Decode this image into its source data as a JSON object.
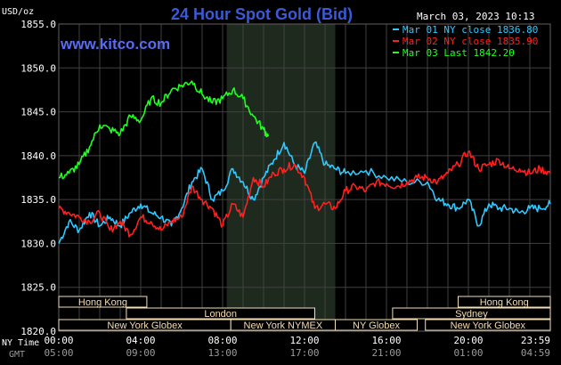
{
  "chart_data": {
    "type": "line",
    "title": "24 Hour Spot Gold (Bid)",
    "watermark": "www.kitco.com",
    "timestamp": "March 03, 2023 10:13",
    "ylabel": "USD/oz",
    "ylim": [
      1820,
      1855
    ],
    "y_ticks": [
      "1855.0",
      "1850.0",
      "1845.0",
      "1840.0",
      "1835.0",
      "1830.0",
      "1825.0",
      "1820.0"
    ],
    "x_range_hours": [
      0,
      24
    ],
    "x_ticks_ny": [
      "00:00",
      "04:00",
      "08:00",
      "12:00",
      "16:00",
      "20:00",
      "23:59"
    ],
    "x_ticks_gmt": [
      "05:00",
      "09:00",
      "13:00",
      "17:00",
      "21:00",
      "01:00",
      "04:59"
    ],
    "x_row_labels": {
      "ny": "NY Time",
      "gmt": "GMT"
    },
    "grid": true,
    "legend_position": "top-right",
    "colors": {
      "background": "#000000",
      "title": "#3b5bd6",
      "watermark": "#5a6cf0",
      "grid": "#404040",
      "axis_text": "#ffffff",
      "market_box": "#f5deb3",
      "market_shade": "#1e2a1e"
    },
    "legend": [
      {
        "label": "Mar 01 NY close 1836.80",
        "color": "#2fc8ff"
      },
      {
        "label": "Mar 02 NY close 1835.90",
        "color": "#ff2020"
      },
      {
        "label": "Mar 03 Last 1842.20",
        "color": "#20ff20"
      }
    ],
    "markets": [
      {
        "label": "Hong Kong",
        "row": 0,
        "hours": [
          0,
          4.3
        ]
      },
      {
        "label": "Hong Kong",
        "row": 0,
        "hours": [
          19.5,
          24
        ]
      },
      {
        "label": "London",
        "row": 1,
        "hours": [
          3.3,
          12.5
        ]
      },
      {
        "label": "Sydney",
        "row": 1,
        "hours": [
          16.3,
          24
        ]
      },
      {
        "label": "New York Globex",
        "row": 2,
        "hours": [
          0,
          8.4
        ]
      },
      {
        "label": "New York NYMEX",
        "row": 2,
        "hours": [
          8.4,
          13.5
        ]
      },
      {
        "label": "NY Globex",
        "row": 2,
        "hours": [
          13.5,
          17.5
        ]
      },
      {
        "label": "New York Globex",
        "row": 2,
        "hours": [
          17.9,
          24
        ]
      }
    ],
    "nymex_shade_hours": [
      8.2,
      13.5
    ],
    "series": [
      {
        "name": "Mar 01 NY close 1836.80",
        "color": "#2fc8ff",
        "x": [
          0,
          0.5,
          1,
          1.5,
          2,
          2.5,
          3,
          3.5,
          4,
          4.5,
          5,
          5.5,
          6,
          6.5,
          7,
          7.5,
          8,
          8.5,
          9,
          9.5,
          10,
          10.5,
          11,
          11.5,
          12,
          12.5,
          13,
          13.5,
          14,
          15,
          16,
          17,
          18,
          18.5,
          19,
          19.5,
          20,
          20.5,
          21,
          21.5,
          22,
          22.5,
          23,
          23.5,
          24
        ],
        "y": [
          1830.0,
          1832.5,
          1831.5,
          1833.5,
          1832.0,
          1833.0,
          1832.0,
          1833.5,
          1834.5,
          1833.5,
          1833.0,
          1832.0,
          1834.0,
          1837.0,
          1838.5,
          1835.0,
          1836.0,
          1838.5,
          1837.0,
          1835.0,
          1837.5,
          1839.5,
          1841.5,
          1839.0,
          1838.0,
          1841.5,
          1839.0,
          1838.5,
          1838.0,
          1838.3,
          1837.5,
          1837.0,
          1837.0,
          1835.0,
          1834.5,
          1834.0,
          1835.0,
          1832.0,
          1834.5,
          1834.0,
          1834.0,
          1833.5,
          1834.0,
          1834.0,
          1834.5
        ]
      },
      {
        "name": "Mar 02 NY close 1835.90",
        "color": "#ff2020",
        "x": [
          0,
          0.5,
          1,
          1.5,
          2,
          2.5,
          3,
          3.5,
          4,
          4.5,
          5,
          5.5,
          6,
          6.5,
          7,
          7.5,
          8,
          8.5,
          9,
          9.5,
          10,
          10.5,
          11,
          11.5,
          12,
          12.5,
          13,
          13.5,
          14,
          14.5,
          15,
          15.5,
          16,
          16.5,
          17,
          17.5,
          18,
          18.5,
          19,
          19.5,
          20,
          20.5,
          21,
          21.5,
          22,
          22.5,
          23,
          23.5,
          24
        ],
        "y": [
          1834.0,
          1833.5,
          1833.0,
          1832.5,
          1833.5,
          1831.5,
          1832.5,
          1831.0,
          1833.0,
          1832.5,
          1831.5,
          1832.5,
          1833.0,
          1836.5,
          1835.0,
          1834.0,
          1832.0,
          1834.5,
          1833.0,
          1837.5,
          1836.5,
          1838.0,
          1838.5,
          1839.0,
          1837.5,
          1834.0,
          1834.5,
          1834.0,
          1836.0,
          1836.5,
          1836.0,
          1837.0,
          1836.8,
          1836.5,
          1837.0,
          1837.5,
          1837.5,
          1837.0,
          1838.0,
          1839.0,
          1840.5,
          1838.5,
          1839.0,
          1839.5,
          1838.5,
          1838.5,
          1838.0,
          1838.5,
          1838.0
        ]
      },
      {
        "name": "Mar 03 Last 1842.20",
        "color": "#20ff20",
        "x": [
          0,
          0.5,
          1,
          1.5,
          2,
          2.5,
          3,
          3.5,
          4,
          4.5,
          5,
          5.5,
          6,
          6.5,
          7,
          7.5,
          8,
          8.5,
          9,
          9.5,
          10,
          10.23
        ],
        "y": [
          1837.5,
          1838.0,
          1839.0,
          1841.0,
          1843.5,
          1843.0,
          1842.5,
          1844.5,
          1844.0,
          1846.5,
          1846.0,
          1847.5,
          1848.0,
          1848.5,
          1847.0,
          1846.0,
          1846.5,
          1847.5,
          1846.5,
          1844.5,
          1843.0,
          1842.2
        ]
      }
    ]
  }
}
